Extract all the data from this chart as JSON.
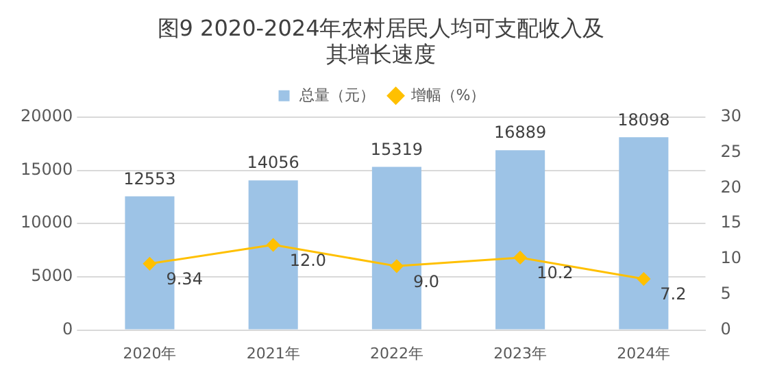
{
  "chart_data": {
    "type": "bar",
    "title": "图9 2020-2024年农村居民人均可支配收入及其增长速度",
    "categories": [
      "2020年",
      "2021年",
      "2022年",
      "2023年",
      "2024年"
    ],
    "series": [
      {
        "name": "总量（元）",
        "color": "#9dc3e6",
        "values": [
          12553,
          14056,
          15319,
          16889,
          18098
        ],
        "value_labels": [
          "12553",
          "14056",
          "15319",
          "16889",
          "18098"
        ]
      },
      {
        "name": "增幅（%）",
        "type": "line",
        "axis": "y2",
        "color": "#ffc000",
        "marker": "diamond",
        "values": [
          9.34,
          12.0,
          9.0,
          10.2,
          7.2
        ],
        "value_labels": [
          "9.34",
          "12.0",
          "9.0",
          "10.2",
          "7.2"
        ]
      }
    ],
    "ylim": [
      0,
      20000
    ],
    "yticks": [
      0,
      5000,
      10000,
      15000,
      20000
    ],
    "y2lim": [
      0,
      30
    ],
    "y2ticks": [
      0,
      5,
      10,
      15,
      20,
      25,
      30
    ],
    "grid": "y",
    "legend": "top"
  }
}
